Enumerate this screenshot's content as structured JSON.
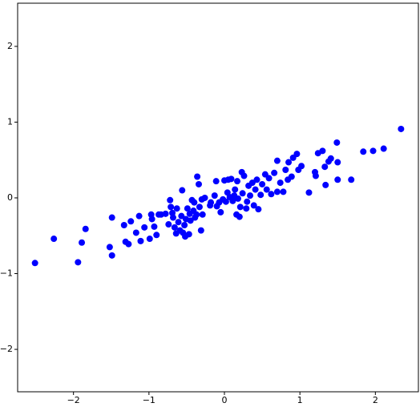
{
  "chart_data": {
    "type": "scatter",
    "x": [
      -2.51,
      -2.26,
      -1.94,
      -1.89,
      -1.84,
      -1.52,
      -1.49,
      -1.49,
      -1.31,
      -1.27,
      -1.33,
      -1.24,
      -1.17,
      -1.13,
      -1.11,
      -1.06,
      -0.99,
      -0.97,
      -0.96,
      -0.93,
      -0.9,
      -0.87,
      -0.84,
      -0.78,
      -0.74,
      -0.72,
      -0.71,
      -0.69,
      -0.68,
      -0.66,
      -0.64,
      -0.63,
      -0.61,
      -0.59,
      -0.57,
      -0.56,
      -0.55,
      -0.53,
      -0.52,
      -0.51,
      -0.49,
      -0.47,
      -0.46,
      -0.45,
      -0.43,
      -0.41,
      -0.4,
      -0.39,
      -0.37,
      -0.36,
      -0.34,
      -0.33,
      -0.31,
      -0.3,
      -0.29,
      -0.26,
      -0.19,
      -0.18,
      -0.13,
      -0.11,
      -0.1,
      -0.07,
      -0.05,
      -0.02,
      0.0,
      0.02,
      0.04,
      0.05,
      0.07,
      0.09,
      0.11,
      0.13,
      0.14,
      0.16,
      0.17,
      0.18,
      0.2,
      0.21,
      0.23,
      0.24,
      0.26,
      0.29,
      0.3,
      0.32,
      0.34,
      0.37,
      0.39,
      0.41,
      0.43,
      0.45,
      0.48,
      0.5,
      0.54,
      0.56,
      0.59,
      0.62,
      0.66,
      0.7,
      0.7,
      0.74,
      0.78,
      0.81,
      0.84,
      0.85,
      0.89,
      0.91,
      0.96,
      0.98,
      1.02,
      1.12,
      1.2,
      1.21,
      1.24,
      1.3,
      1.33,
      1.34,
      1.38,
      1.41,
      1.49,
      1.5,
      1.5,
      1.68,
      1.84,
      1.97,
      2.11,
      2.34
    ],
    "series": [
      {
        "color": "#0000ff",
        "values": [
          -0.86,
          -0.54,
          -0.85,
          -0.59,
          -0.41,
          -0.65,
          -0.76,
          -0.26,
          -0.58,
          -0.61,
          -0.36,
          -0.31,
          -0.46,
          -0.24,
          -0.57,
          -0.39,
          -0.54,
          -0.22,
          -0.28,
          -0.38,
          -0.49,
          -0.22,
          -0.22,
          -0.21,
          -0.35,
          -0.03,
          -0.12,
          -0.2,
          -0.26,
          -0.39,
          -0.47,
          -0.14,
          -0.32,
          -0.43,
          -0.24,
          0.1,
          -0.46,
          -0.36,
          -0.51,
          -0.28,
          -0.14,
          -0.48,
          -0.21,
          -0.3,
          -0.03,
          -0.17,
          -0.06,
          -0.26,
          -0.22,
          0.28,
          0.18,
          -0.12,
          -0.43,
          -0.02,
          -0.22,
          0.0,
          -0.1,
          -0.06,
          0.03,
          0.22,
          -0.11,
          -0.06,
          -0.19,
          -0.02,
          0.23,
          -0.05,
          0.07,
          0.24,
          0.01,
          0.25,
          -0.04,
          0.03,
          0.11,
          -0.22,
          0.22,
          -0.01,
          -0.25,
          -0.12,
          0.34,
          0.06,
          0.29,
          -0.14,
          -0.05,
          0.16,
          0.03,
          0.2,
          -0.1,
          0.11,
          0.24,
          -0.15,
          0.04,
          0.18,
          0.31,
          0.11,
          0.26,
          0.05,
          0.33,
          0.49,
          0.08,
          0.2,
          0.08,
          0.37,
          0.24,
          0.47,
          0.28,
          0.53,
          0.58,
          0.37,
          0.42,
          0.07,
          0.34,
          0.29,
          0.59,
          0.62,
          0.41,
          0.17,
          0.48,
          0.52,
          0.73,
          0.47,
          0.24,
          0.24,
          0.61,
          0.62,
          0.65,
          0.91
        ]
      }
    ],
    "xlim": [
      -2.74,
      2.57
    ],
    "ylim": [
      -2.56,
      2.57
    ],
    "xticks": [
      {
        "value": -2,
        "label": "−2"
      },
      {
        "value": -1,
        "label": "−1"
      },
      0,
      1,
      2
    ],
    "yticks": [
      {
        "value": -2,
        "label": "−2"
      },
      {
        "value": -1,
        "label": "−1"
      },
      0,
      1,
      2
    ]
  }
}
